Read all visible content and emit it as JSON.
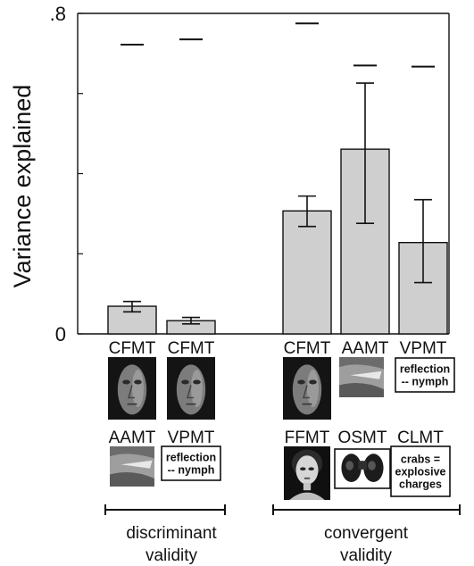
{
  "chart_data": {
    "type": "bar",
    "ylabel": "Variance explained",
    "ylim": [
      0,
      0.8
    ],
    "yticks": [
      {
        "value": 0,
        "label": "0"
      },
      {
        "value": 0.2,
        "label": ""
      },
      {
        "value": 0.4,
        "label": ""
      },
      {
        "value": 0.6,
        "label": ""
      },
      {
        "value": 0.8,
        "label": ".8"
      }
    ],
    "categories": [
      "CFMT",
      "CFMT",
      "",
      "CFMT",
      "AAMT",
      "VPMT"
    ],
    "bars": [
      {
        "label": "CFMT",
        "value": 0.069,
        "err_low": 0.055,
        "err_high": 0.081,
        "ceiling": 0.722
      },
      {
        "label": "CFMT",
        "value": 0.033,
        "err_low": 0.025,
        "err_high": 0.041,
        "ceiling": 0.735
      },
      {
        "label": "",
        "value": 0.0,
        "err_low": null,
        "err_high": null,
        "ceiling": null
      },
      {
        "label": "CFMT",
        "value": 0.307,
        "err_low": 0.268,
        "err_high": 0.344,
        "ceiling": 0.775
      },
      {
        "label": "AAMT",
        "value": 0.461,
        "err_low": 0.276,
        "err_high": 0.626,
        "ceiling": 0.67
      },
      {
        "label": "VPMT",
        "value": 0.228,
        "err_low": 0.128,
        "err_high": 0.335,
        "ceiling": 0.667
      }
    ],
    "stimuli_row1": [
      {
        "label": "CFMT",
        "kind": "face-icon"
      },
      {
        "label": "CFMT",
        "kind": "face-icon"
      },
      {
        "label": "CFMT",
        "kind": "face-icon"
      },
      {
        "label": "AAMT",
        "kind": "abstract-art-icon"
      },
      {
        "label": "VPMT",
        "kind": "text-box",
        "lines": [
          "reflection",
          "-- nymph"
        ]
      }
    ],
    "stimuli_row2": [
      {
        "label": "AAMT",
        "kind": "abstract-art-icon"
      },
      {
        "label": "VPMT",
        "kind": "text-box",
        "lines": [
          "reflection",
          "-- nymph"
        ]
      },
      {
        "label": "FFMT",
        "kind": "female-face-icon"
      },
      {
        "label": "OSMT",
        "kind": "binoculars-icon"
      },
      {
        "label": "CLMT",
        "kind": "text-box",
        "lines": [
          "crabs =",
          "explosive",
          "charges"
        ]
      }
    ],
    "groups": [
      {
        "lines": [
          "discriminant",
          "validity"
        ]
      },
      {
        "lines": [
          "convergent",
          "validity"
        ]
      }
    ],
    "colors": {
      "bar_fill": "#cfcfcf",
      "stroke": "#111111"
    }
  }
}
